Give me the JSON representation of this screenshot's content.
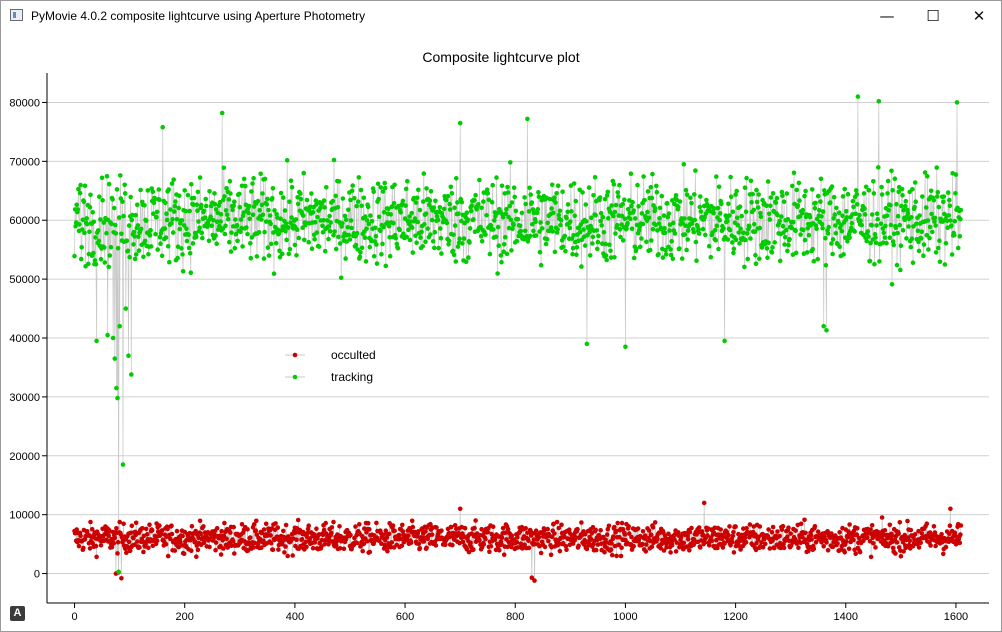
{
  "window": {
    "title": "PyMovie 4.0.2 composite lightcurve using Aperture Photometry",
    "minimize_glyph": "—",
    "maximize_glyph": "☐",
    "close_glyph": "✕",
    "corner_badge": "A"
  },
  "colors": {
    "occulted": "#cc0000",
    "tracking": "#00cc00",
    "connector": "#c8c8c8",
    "grid": "#d0d0d0",
    "axis": "#000000"
  },
  "chart_data": {
    "type": "line",
    "title": "Composite lightcurve plot",
    "xlabel": "",
    "ylabel": "",
    "xlim": [
      -50,
      1660
    ],
    "ylim": [
      -5000,
      85000
    ],
    "x_ticks": [
      0,
      200,
      400,
      600,
      800,
      1000,
      1200,
      1400,
      1600
    ],
    "y_ticks": [
      0,
      10000,
      20000,
      30000,
      40000,
      50000,
      60000,
      70000,
      80000
    ],
    "x_tick_labels": [
      "0",
      "200",
      "400",
      "600",
      "800",
      "1000",
      "1200",
      "1400",
      "1600"
    ],
    "y_tick_labels": [
      "0",
      "10000",
      "20000",
      "30000",
      "40000",
      "50000",
      "60000",
      "70000",
      "80000"
    ],
    "grid": "horizontal",
    "legend_position": "center-left",
    "n_points": 1610,
    "series": [
      {
        "name": "occulted",
        "color": "#cc0000",
        "mean": 6000,
        "noise": 2000,
        "excursions": [
          {
            "x": 75,
            "y": 0
          },
          {
            "x": 80,
            "y": 200
          },
          {
            "x": 85,
            "y": -800
          },
          {
            "x": 830,
            "y": -700
          },
          {
            "x": 835,
            "y": -1200
          },
          {
            "x": 700,
            "y": 11000
          },
          {
            "x": 1143,
            "y": 12000
          },
          {
            "x": 1590,
            "y": 11000
          }
        ]
      },
      {
        "name": "tracking",
        "color": "#00cc00",
        "mean": 60000,
        "noise": 6000,
        "excursions": [
          {
            "x": 40,
            "y": 39500
          },
          {
            "x": 60,
            "y": 40500
          },
          {
            "x": 70,
            "y": 40000
          },
          {
            "x": 73,
            "y": 36500
          },
          {
            "x": 76,
            "y": 31500
          },
          {
            "x": 78,
            "y": 29800
          },
          {
            "x": 80,
            "y": 300
          },
          {
            "x": 82,
            "y": 42000
          },
          {
            "x": 88,
            "y": 18500
          },
          {
            "x": 93,
            "y": 45000
          },
          {
            "x": 98,
            "y": 37000
          },
          {
            "x": 103,
            "y": 33800
          },
          {
            "x": 268,
            "y": 78200
          },
          {
            "x": 930,
            "y": 39000
          },
          {
            "x": 1000,
            "y": 38500
          },
          {
            "x": 1180,
            "y": 39500
          },
          {
            "x": 1360,
            "y": 42000
          },
          {
            "x": 1365,
            "y": 41300
          },
          {
            "x": 1422,
            "y": 81000
          },
          {
            "x": 1460,
            "y": 80200
          },
          {
            "x": 1602,
            "y": 80000
          },
          {
            "x": 700,
            "y": 76500
          },
          {
            "x": 822,
            "y": 77200
          },
          {
            "x": 160,
            "y": 75800
          }
        ]
      }
    ]
  }
}
